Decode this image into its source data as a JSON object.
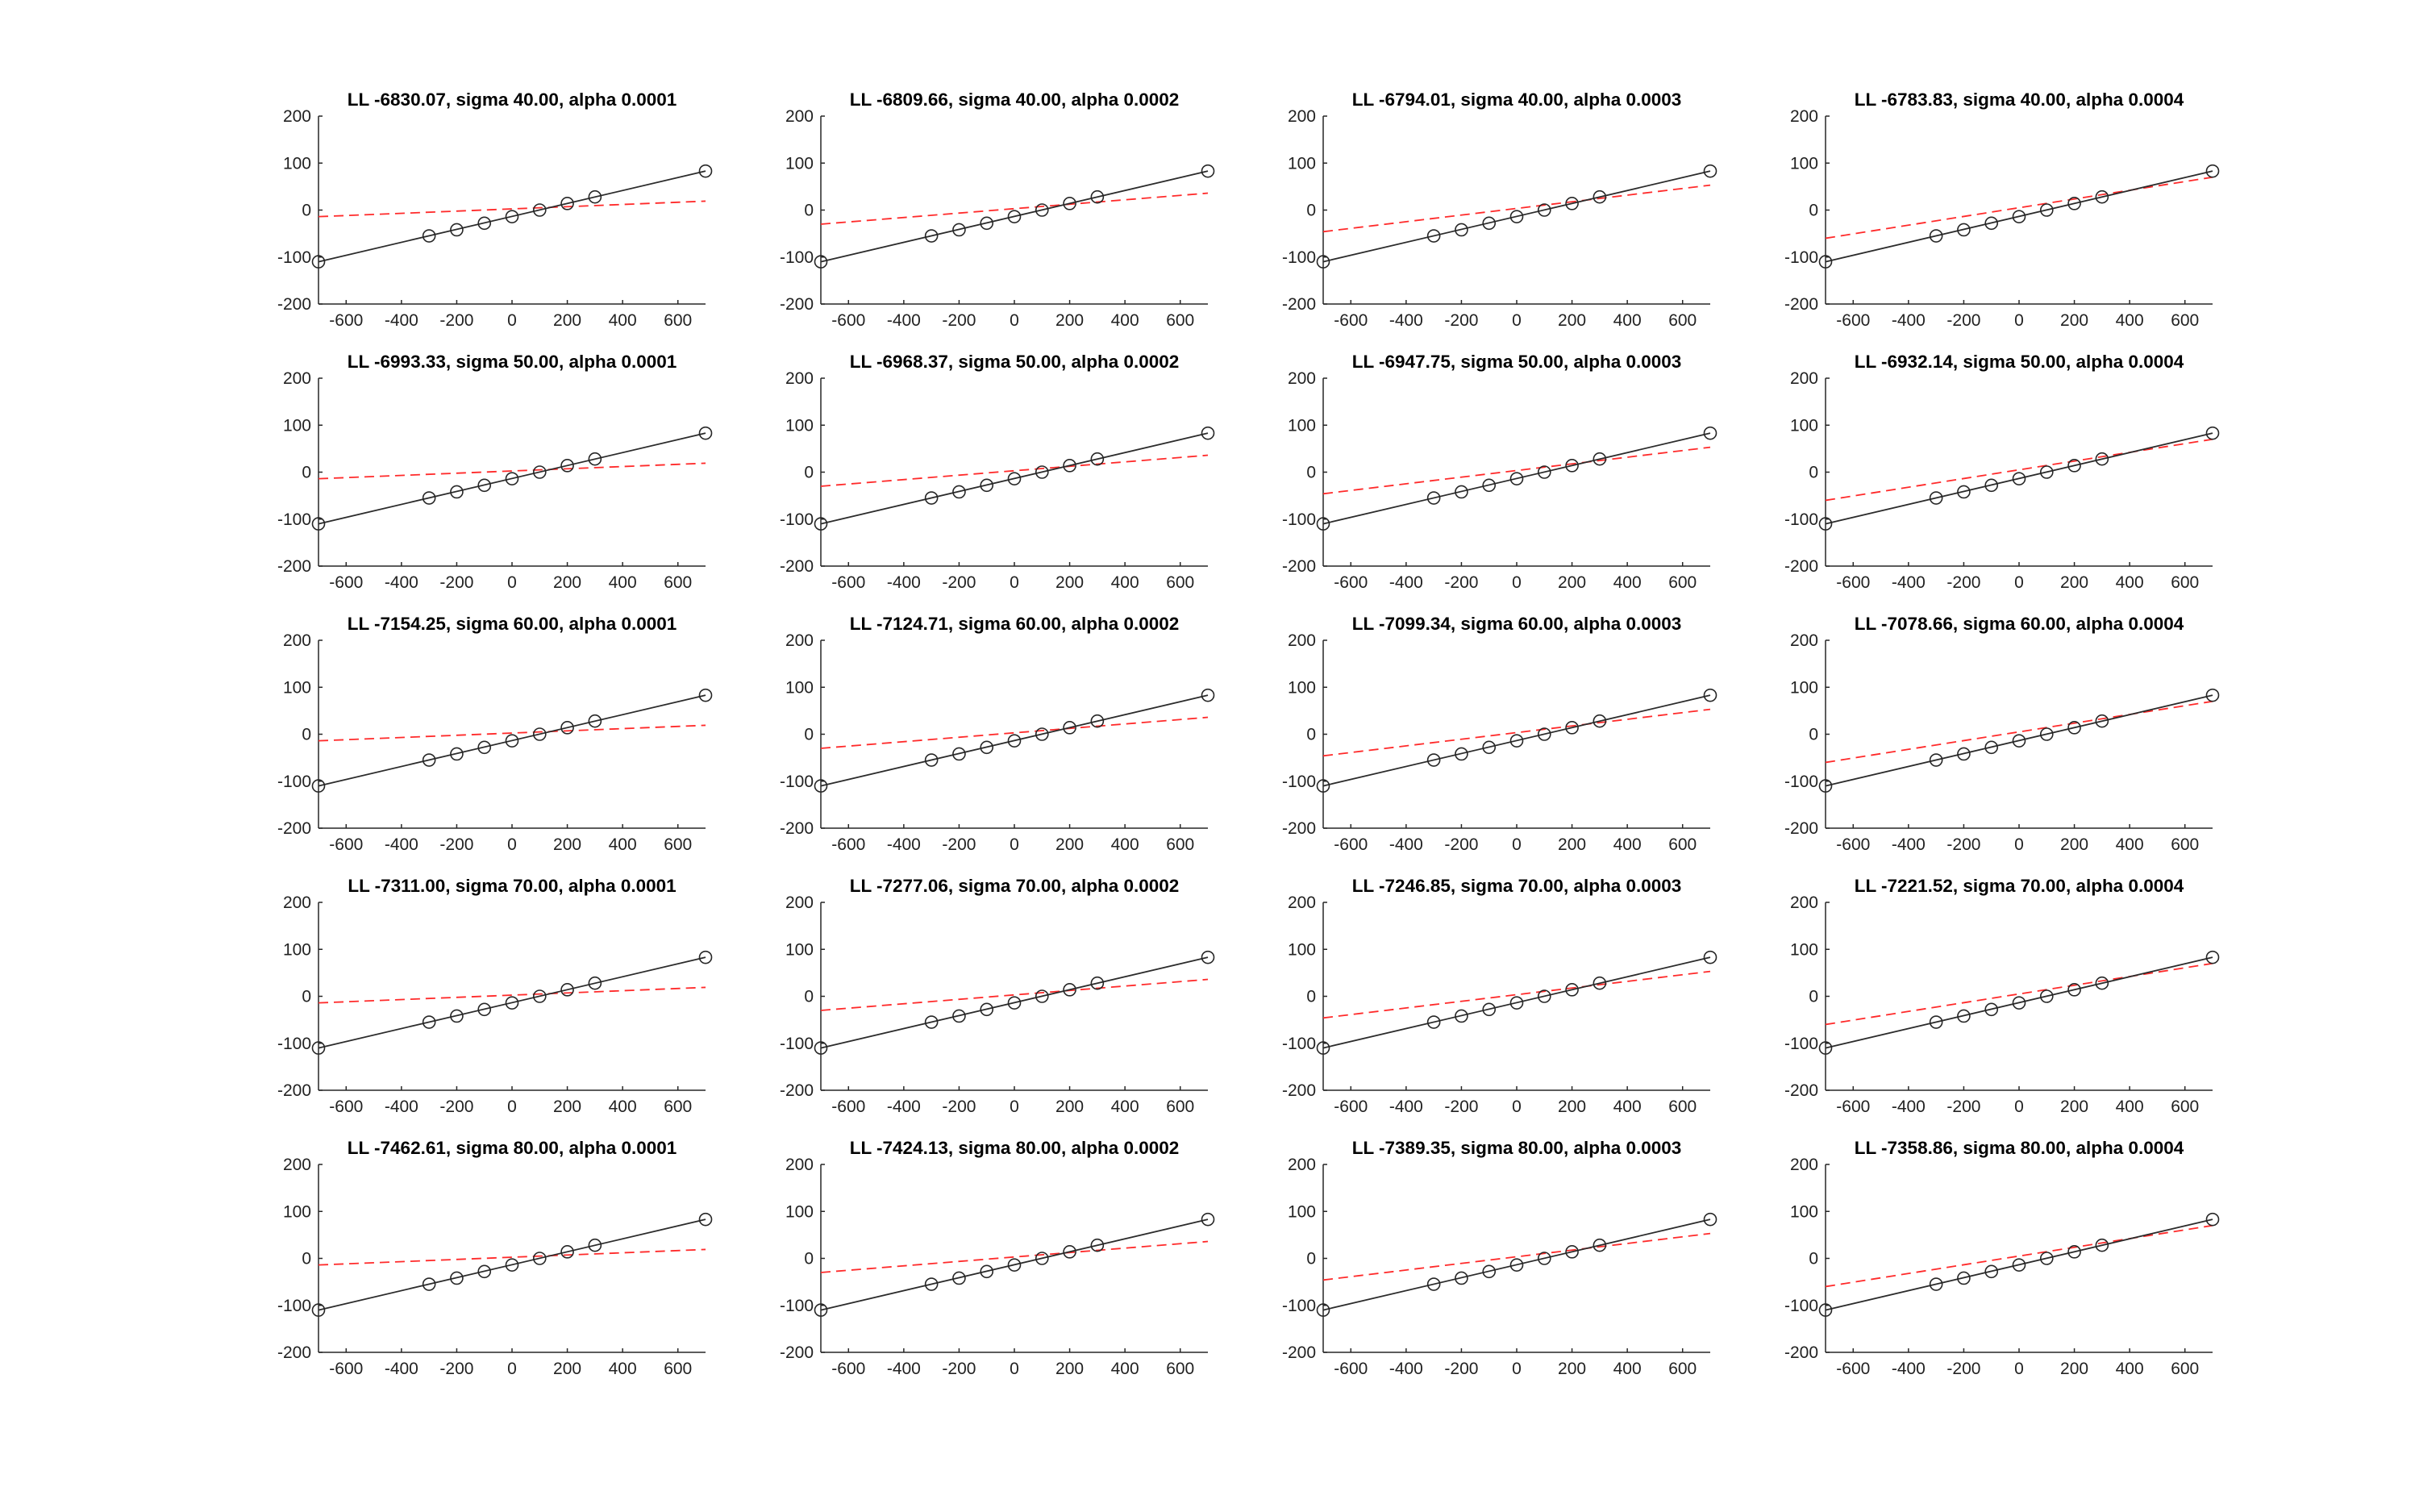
{
  "chart_data": [
    {
      "type": "line",
      "title": "LL -6830.07, sigma 40.00, alpha 0.0001",
      "xlim": [
        -700,
        700
      ],
      "ylim": [
        -200,
        200
      ],
      "xticks": [
        -600,
        -400,
        -200,
        0,
        200,
        400,
        600
      ],
      "yticks": [
        -200,
        -100,
        0,
        100,
        200
      ],
      "grid": false,
      "x": [
        -700,
        -300,
        -200,
        -100,
        0,
        100,
        200,
        300,
        700
      ],
      "y": [
        -110,
        -55,
        -42,
        -28,
        -14,
        0,
        14,
        28,
        83
      ],
      "fit_line": {
        "x": [
          -700,
          700
        ],
        "y": [
          -110,
          83
        ]
      },
      "model_line": {
        "x": [
          -700,
          700
        ],
        "y": [
          -14,
          19
        ]
      }
    },
    {
      "type": "line",
      "title": "LL -6809.66, sigma 40.00, alpha 0.0002",
      "xlim": [
        -700,
        700
      ],
      "ylim": [
        -200,
        200
      ],
      "xticks": [
        -600,
        -400,
        -200,
        0,
        200,
        400,
        600
      ],
      "yticks": [
        -200,
        -100,
        0,
        100,
        200
      ],
      "grid": false,
      "x": [
        -700,
        -300,
        -200,
        -100,
        0,
        100,
        200,
        300,
        700
      ],
      "y": [
        -110,
        -55,
        -42,
        -28,
        -14,
        0,
        14,
        28,
        83
      ],
      "fit_line": {
        "x": [
          -700,
          700
        ],
        "y": [
          -110,
          83
        ]
      },
      "model_line": {
        "x": [
          -700,
          700
        ],
        "y": [
          -30,
          36
        ]
      }
    },
    {
      "type": "line",
      "title": "LL -6794.01, sigma 40.00, alpha 0.0003",
      "xlim": [
        -700,
        700
      ],
      "ylim": [
        -200,
        200
      ],
      "xticks": [
        -600,
        -400,
        -200,
        0,
        200,
        400,
        600
      ],
      "yticks": [
        -200,
        -100,
        0,
        100,
        200
      ],
      "grid": false,
      "x": [
        -700,
        -300,
        -200,
        -100,
        0,
        100,
        200,
        300,
        700
      ],
      "y": [
        -110,
        -55,
        -42,
        -28,
        -14,
        0,
        14,
        28,
        83
      ],
      "fit_line": {
        "x": [
          -700,
          700
        ],
        "y": [
          -110,
          83
        ]
      },
      "model_line": {
        "x": [
          -700,
          700
        ],
        "y": [
          -46,
          53
        ]
      }
    },
    {
      "type": "line",
      "title": "LL -6783.83, sigma 40.00, alpha 0.0004",
      "xlim": [
        -700,
        700
      ],
      "ylim": [
        -200,
        200
      ],
      "xticks": [
        -600,
        -400,
        -200,
        0,
        200,
        400,
        600
      ],
      "yticks": [
        -200,
        -100,
        0,
        100,
        200
      ],
      "grid": false,
      "x": [
        -700,
        -300,
        -200,
        -100,
        0,
        100,
        200,
        300,
        700
      ],
      "y": [
        -110,
        -55,
        -42,
        -28,
        -14,
        0,
        14,
        28,
        83
      ],
      "fit_line": {
        "x": [
          -700,
          700
        ],
        "y": [
          -110,
          83
        ]
      },
      "model_line": {
        "x": [
          -700,
          700
        ],
        "y": [
          -60,
          70
        ]
      }
    },
    {
      "type": "line",
      "title": "LL -6993.33, sigma 50.00, alpha 0.0001",
      "xlim": [
        -700,
        700
      ],
      "ylim": [
        -200,
        200
      ],
      "xticks": [
        -600,
        -400,
        -200,
        0,
        200,
        400,
        600
      ],
      "yticks": [
        -200,
        -100,
        0,
        100,
        200
      ],
      "grid": false,
      "x": [
        -700,
        -300,
        -200,
        -100,
        0,
        100,
        200,
        300,
        700
      ],
      "y": [
        -110,
        -55,
        -42,
        -28,
        -14,
        0,
        14,
        28,
        83
      ],
      "fit_line": {
        "x": [
          -700,
          700
        ],
        "y": [
          -110,
          83
        ]
      },
      "model_line": {
        "x": [
          -700,
          700
        ],
        "y": [
          -14,
          19
        ]
      }
    },
    {
      "type": "line",
      "title": "LL -6968.37, sigma 50.00, alpha 0.0002",
      "xlim": [
        -700,
        700
      ],
      "ylim": [
        -200,
        200
      ],
      "xticks": [
        -600,
        -400,
        -200,
        0,
        200,
        400,
        600
      ],
      "yticks": [
        -200,
        -100,
        0,
        100,
        200
      ],
      "grid": false,
      "x": [
        -700,
        -300,
        -200,
        -100,
        0,
        100,
        200,
        300,
        700
      ],
      "y": [
        -110,
        -55,
        -42,
        -28,
        -14,
        0,
        14,
        28,
        83
      ],
      "fit_line": {
        "x": [
          -700,
          700
        ],
        "y": [
          -110,
          83
        ]
      },
      "model_line": {
        "x": [
          -700,
          700
        ],
        "y": [
          -30,
          36
        ]
      }
    },
    {
      "type": "line",
      "title": "LL -6947.75, sigma 50.00, alpha 0.0003",
      "xlim": [
        -700,
        700
      ],
      "ylim": [
        -200,
        200
      ],
      "xticks": [
        -600,
        -400,
        -200,
        0,
        200,
        400,
        600
      ],
      "yticks": [
        -200,
        -100,
        0,
        100,
        200
      ],
      "grid": false,
      "x": [
        -700,
        -300,
        -200,
        -100,
        0,
        100,
        200,
        300,
        700
      ],
      "y": [
        -110,
        -55,
        -42,
        -28,
        -14,
        0,
        14,
        28,
        83
      ],
      "fit_line": {
        "x": [
          -700,
          700
        ],
        "y": [
          -110,
          83
        ]
      },
      "model_line": {
        "x": [
          -700,
          700
        ],
        "y": [
          -46,
          53
        ]
      }
    },
    {
      "type": "line",
      "title": "LL -6932.14, sigma 50.00, alpha 0.0004",
      "xlim": [
        -700,
        700
      ],
      "ylim": [
        -200,
        200
      ],
      "xticks": [
        -600,
        -400,
        -200,
        0,
        200,
        400,
        600
      ],
      "yticks": [
        -200,
        -100,
        0,
        100,
        200
      ],
      "grid": false,
      "x": [
        -700,
        -300,
        -200,
        -100,
        0,
        100,
        200,
        300,
        700
      ],
      "y": [
        -110,
        -55,
        -42,
        -28,
        -14,
        0,
        14,
        28,
        83
      ],
      "fit_line": {
        "x": [
          -700,
          700
        ],
        "y": [
          -110,
          83
        ]
      },
      "model_line": {
        "x": [
          -700,
          700
        ],
        "y": [
          -60,
          70
        ]
      }
    },
    {
      "type": "line",
      "title": "LL -7154.25, sigma 60.00, alpha 0.0001",
      "xlim": [
        -700,
        700
      ],
      "ylim": [
        -200,
        200
      ],
      "xticks": [
        -600,
        -400,
        -200,
        0,
        200,
        400,
        600
      ],
      "yticks": [
        -200,
        -100,
        0,
        100,
        200
      ],
      "grid": false,
      "x": [
        -700,
        -300,
        -200,
        -100,
        0,
        100,
        200,
        300,
        700
      ],
      "y": [
        -110,
        -55,
        -42,
        -28,
        -14,
        0,
        14,
        28,
        83
      ],
      "fit_line": {
        "x": [
          -700,
          700
        ],
        "y": [
          -110,
          83
        ]
      },
      "model_line": {
        "x": [
          -700,
          700
        ],
        "y": [
          -14,
          19
        ]
      }
    },
    {
      "type": "line",
      "title": "LL -7124.71, sigma 60.00, alpha 0.0002",
      "xlim": [
        -700,
        700
      ],
      "ylim": [
        -200,
        200
      ],
      "xticks": [
        -600,
        -400,
        -200,
        0,
        200,
        400,
        600
      ],
      "yticks": [
        -200,
        -100,
        0,
        100,
        200
      ],
      "grid": false,
      "x": [
        -700,
        -300,
        -200,
        -100,
        0,
        100,
        200,
        300,
        700
      ],
      "y": [
        -110,
        -55,
        -42,
        -28,
        -14,
        0,
        14,
        28,
        83
      ],
      "fit_line": {
        "x": [
          -700,
          700
        ],
        "y": [
          -110,
          83
        ]
      },
      "model_line": {
        "x": [
          -700,
          700
        ],
        "y": [
          -30,
          36
        ]
      }
    },
    {
      "type": "line",
      "title": "LL -7099.34, sigma 60.00, alpha 0.0003",
      "xlim": [
        -700,
        700
      ],
      "ylim": [
        -200,
        200
      ],
      "xticks": [
        -600,
        -400,
        -200,
        0,
        200,
        400,
        600
      ],
      "yticks": [
        -200,
        -100,
        0,
        100,
        200
      ],
      "grid": false,
      "x": [
        -700,
        -300,
        -200,
        -100,
        0,
        100,
        200,
        300,
        700
      ],
      "y": [
        -110,
        -55,
        -42,
        -28,
        -14,
        0,
        14,
        28,
        83
      ],
      "fit_line": {
        "x": [
          -700,
          700
        ],
        "y": [
          -110,
          83
        ]
      },
      "model_line": {
        "x": [
          -700,
          700
        ],
        "y": [
          -46,
          53
        ]
      }
    },
    {
      "type": "line",
      "title": "LL -7078.66, sigma 60.00, alpha 0.0004",
      "xlim": [
        -700,
        700
      ],
      "ylim": [
        -200,
        200
      ],
      "xticks": [
        -600,
        -400,
        -200,
        0,
        200,
        400,
        600
      ],
      "yticks": [
        -200,
        -100,
        0,
        100,
        200
      ],
      "grid": false,
      "x": [
        -700,
        -300,
        -200,
        -100,
        0,
        100,
        200,
        300,
        700
      ],
      "y": [
        -110,
        -55,
        -42,
        -28,
        -14,
        0,
        14,
        28,
        83
      ],
      "fit_line": {
        "x": [
          -700,
          700
        ],
        "y": [
          -110,
          83
        ]
      },
      "model_line": {
        "x": [
          -700,
          700
        ],
        "y": [
          -60,
          70
        ]
      }
    },
    {
      "type": "line",
      "title": "LL -7311.00, sigma 70.00, alpha 0.0001",
      "xlim": [
        -700,
        700
      ],
      "ylim": [
        -200,
        200
      ],
      "xticks": [
        -600,
        -400,
        -200,
        0,
        200,
        400,
        600
      ],
      "yticks": [
        -200,
        -100,
        0,
        100,
        200
      ],
      "grid": false,
      "x": [
        -700,
        -300,
        -200,
        -100,
        0,
        100,
        200,
        300,
        700
      ],
      "y": [
        -110,
        -55,
        -42,
        -28,
        -14,
        0,
        14,
        28,
        83
      ],
      "fit_line": {
        "x": [
          -700,
          700
        ],
        "y": [
          -110,
          83
        ]
      },
      "model_line": {
        "x": [
          -700,
          700
        ],
        "y": [
          -14,
          19
        ]
      }
    },
    {
      "type": "line",
      "title": "LL -7277.06, sigma 70.00, alpha 0.0002",
      "xlim": [
        -700,
        700
      ],
      "ylim": [
        -200,
        200
      ],
      "xticks": [
        -600,
        -400,
        -200,
        0,
        200,
        400,
        600
      ],
      "yticks": [
        -200,
        -100,
        0,
        100,
        200
      ],
      "grid": false,
      "x": [
        -700,
        -300,
        -200,
        -100,
        0,
        100,
        200,
        300,
        700
      ],
      "y": [
        -110,
        -55,
        -42,
        -28,
        -14,
        0,
        14,
        28,
        83
      ],
      "fit_line": {
        "x": [
          -700,
          700
        ],
        "y": [
          -110,
          83
        ]
      },
      "model_line": {
        "x": [
          -700,
          700
        ],
        "y": [
          -30,
          36
        ]
      }
    },
    {
      "type": "line",
      "title": "LL -7246.85, sigma 70.00, alpha 0.0003",
      "xlim": [
        -700,
        700
      ],
      "ylim": [
        -200,
        200
      ],
      "xticks": [
        -600,
        -400,
        -200,
        0,
        200,
        400,
        600
      ],
      "yticks": [
        -200,
        -100,
        0,
        100,
        200
      ],
      "grid": false,
      "x": [
        -700,
        -300,
        -200,
        -100,
        0,
        100,
        200,
        300,
        700
      ],
      "y": [
        -110,
        -55,
        -42,
        -28,
        -14,
        0,
        14,
        28,
        83
      ],
      "fit_line": {
        "x": [
          -700,
          700
        ],
        "y": [
          -110,
          83
        ]
      },
      "model_line": {
        "x": [
          -700,
          700
        ],
        "y": [
          -46,
          53
        ]
      }
    },
    {
      "type": "line",
      "title": "LL -7221.52, sigma 70.00, alpha 0.0004",
      "xlim": [
        -700,
        700
      ],
      "ylim": [
        -200,
        200
      ],
      "xticks": [
        -600,
        -400,
        -200,
        0,
        200,
        400,
        600
      ],
      "yticks": [
        -200,
        -100,
        0,
        100,
        200
      ],
      "grid": false,
      "x": [
        -700,
        -300,
        -200,
        -100,
        0,
        100,
        200,
        300,
        700
      ],
      "y": [
        -110,
        -55,
        -42,
        -28,
        -14,
        0,
        14,
        28,
        83
      ],
      "fit_line": {
        "x": [
          -700,
          700
        ],
        "y": [
          -110,
          83
        ]
      },
      "model_line": {
        "x": [
          -700,
          700
        ],
        "y": [
          -60,
          70
        ]
      }
    },
    {
      "type": "line",
      "title": "LL -7462.61, sigma 80.00, alpha 0.0001",
      "xlim": [
        -700,
        700
      ],
      "ylim": [
        -200,
        200
      ],
      "xticks": [
        -600,
        -400,
        -200,
        0,
        200,
        400,
        600
      ],
      "yticks": [
        -200,
        -100,
        0,
        100,
        200
      ],
      "grid": false,
      "x": [
        -700,
        -300,
        -200,
        -100,
        0,
        100,
        200,
        300,
        700
      ],
      "y": [
        -110,
        -55,
        -42,
        -28,
        -14,
        0,
        14,
        28,
        83
      ],
      "fit_line": {
        "x": [
          -700,
          700
        ],
        "y": [
          -110,
          83
        ]
      },
      "model_line": {
        "x": [
          -700,
          700
        ],
        "y": [
          -14,
          19
        ]
      }
    },
    {
      "type": "line",
      "title": "LL -7424.13, sigma 80.00, alpha 0.0002",
      "xlim": [
        -700,
        700
      ],
      "ylim": [
        -200,
        200
      ],
      "xticks": [
        -600,
        -400,
        -200,
        0,
        200,
        400,
        600
      ],
      "yticks": [
        -200,
        -100,
        0,
        100,
        200
      ],
      "grid": false,
      "x": [
        -700,
        -300,
        -200,
        -100,
        0,
        100,
        200,
        300,
        700
      ],
      "y": [
        -110,
        -55,
        -42,
        -28,
        -14,
        0,
        14,
        28,
        83
      ],
      "fit_line": {
        "x": [
          -700,
          700
        ],
        "y": [
          -110,
          83
        ]
      },
      "model_line": {
        "x": [
          -700,
          700
        ],
        "y": [
          -30,
          36
        ]
      }
    },
    {
      "type": "line",
      "title": "LL -7389.35, sigma 80.00, alpha 0.0003",
      "xlim": [
        -700,
        700
      ],
      "ylim": [
        -200,
        200
      ],
      "xticks": [
        -600,
        -400,
        -200,
        0,
        200,
        400,
        600
      ],
      "yticks": [
        -200,
        -100,
        0,
        100,
        200
      ],
      "grid": false,
      "x": [
        -700,
        -300,
        -200,
        -100,
        0,
        100,
        200,
        300,
        700
      ],
      "y": [
        -110,
        -55,
        -42,
        -28,
        -14,
        0,
        14,
        28,
        83
      ],
      "fit_line": {
        "x": [
          -700,
          700
        ],
        "y": [
          -110,
          83
        ]
      },
      "model_line": {
        "x": [
          -700,
          700
        ],
        "y": [
          -46,
          53
        ]
      }
    },
    {
      "type": "line",
      "title": "LL -7358.86, sigma 80.00, alpha 0.0004",
      "xlim": [
        -700,
        700
      ],
      "ylim": [
        -200,
        200
      ],
      "xticks": [
        -600,
        -400,
        -200,
        0,
        200,
        400,
        600
      ],
      "yticks": [
        -200,
        -100,
        0,
        100,
        200
      ],
      "grid": false,
      "x": [
        -700,
        -300,
        -200,
        -100,
        0,
        100,
        200,
        300,
        700
      ],
      "y": [
        -110,
        -55,
        -42,
        -28,
        -14,
        0,
        14,
        28,
        83
      ],
      "fit_line": {
        "x": [
          -700,
          700
        ],
        "y": [
          -110,
          83
        ]
      },
      "model_line": {
        "x": [
          -700,
          700
        ],
        "y": [
          -60,
          70
        ]
      }
    }
  ],
  "colors": {
    "fit_line": "#2b2b2b",
    "model_line": "#ff2a2a",
    "marker": "#262626",
    "axis": "#262626",
    "background": "#ffffff"
  }
}
